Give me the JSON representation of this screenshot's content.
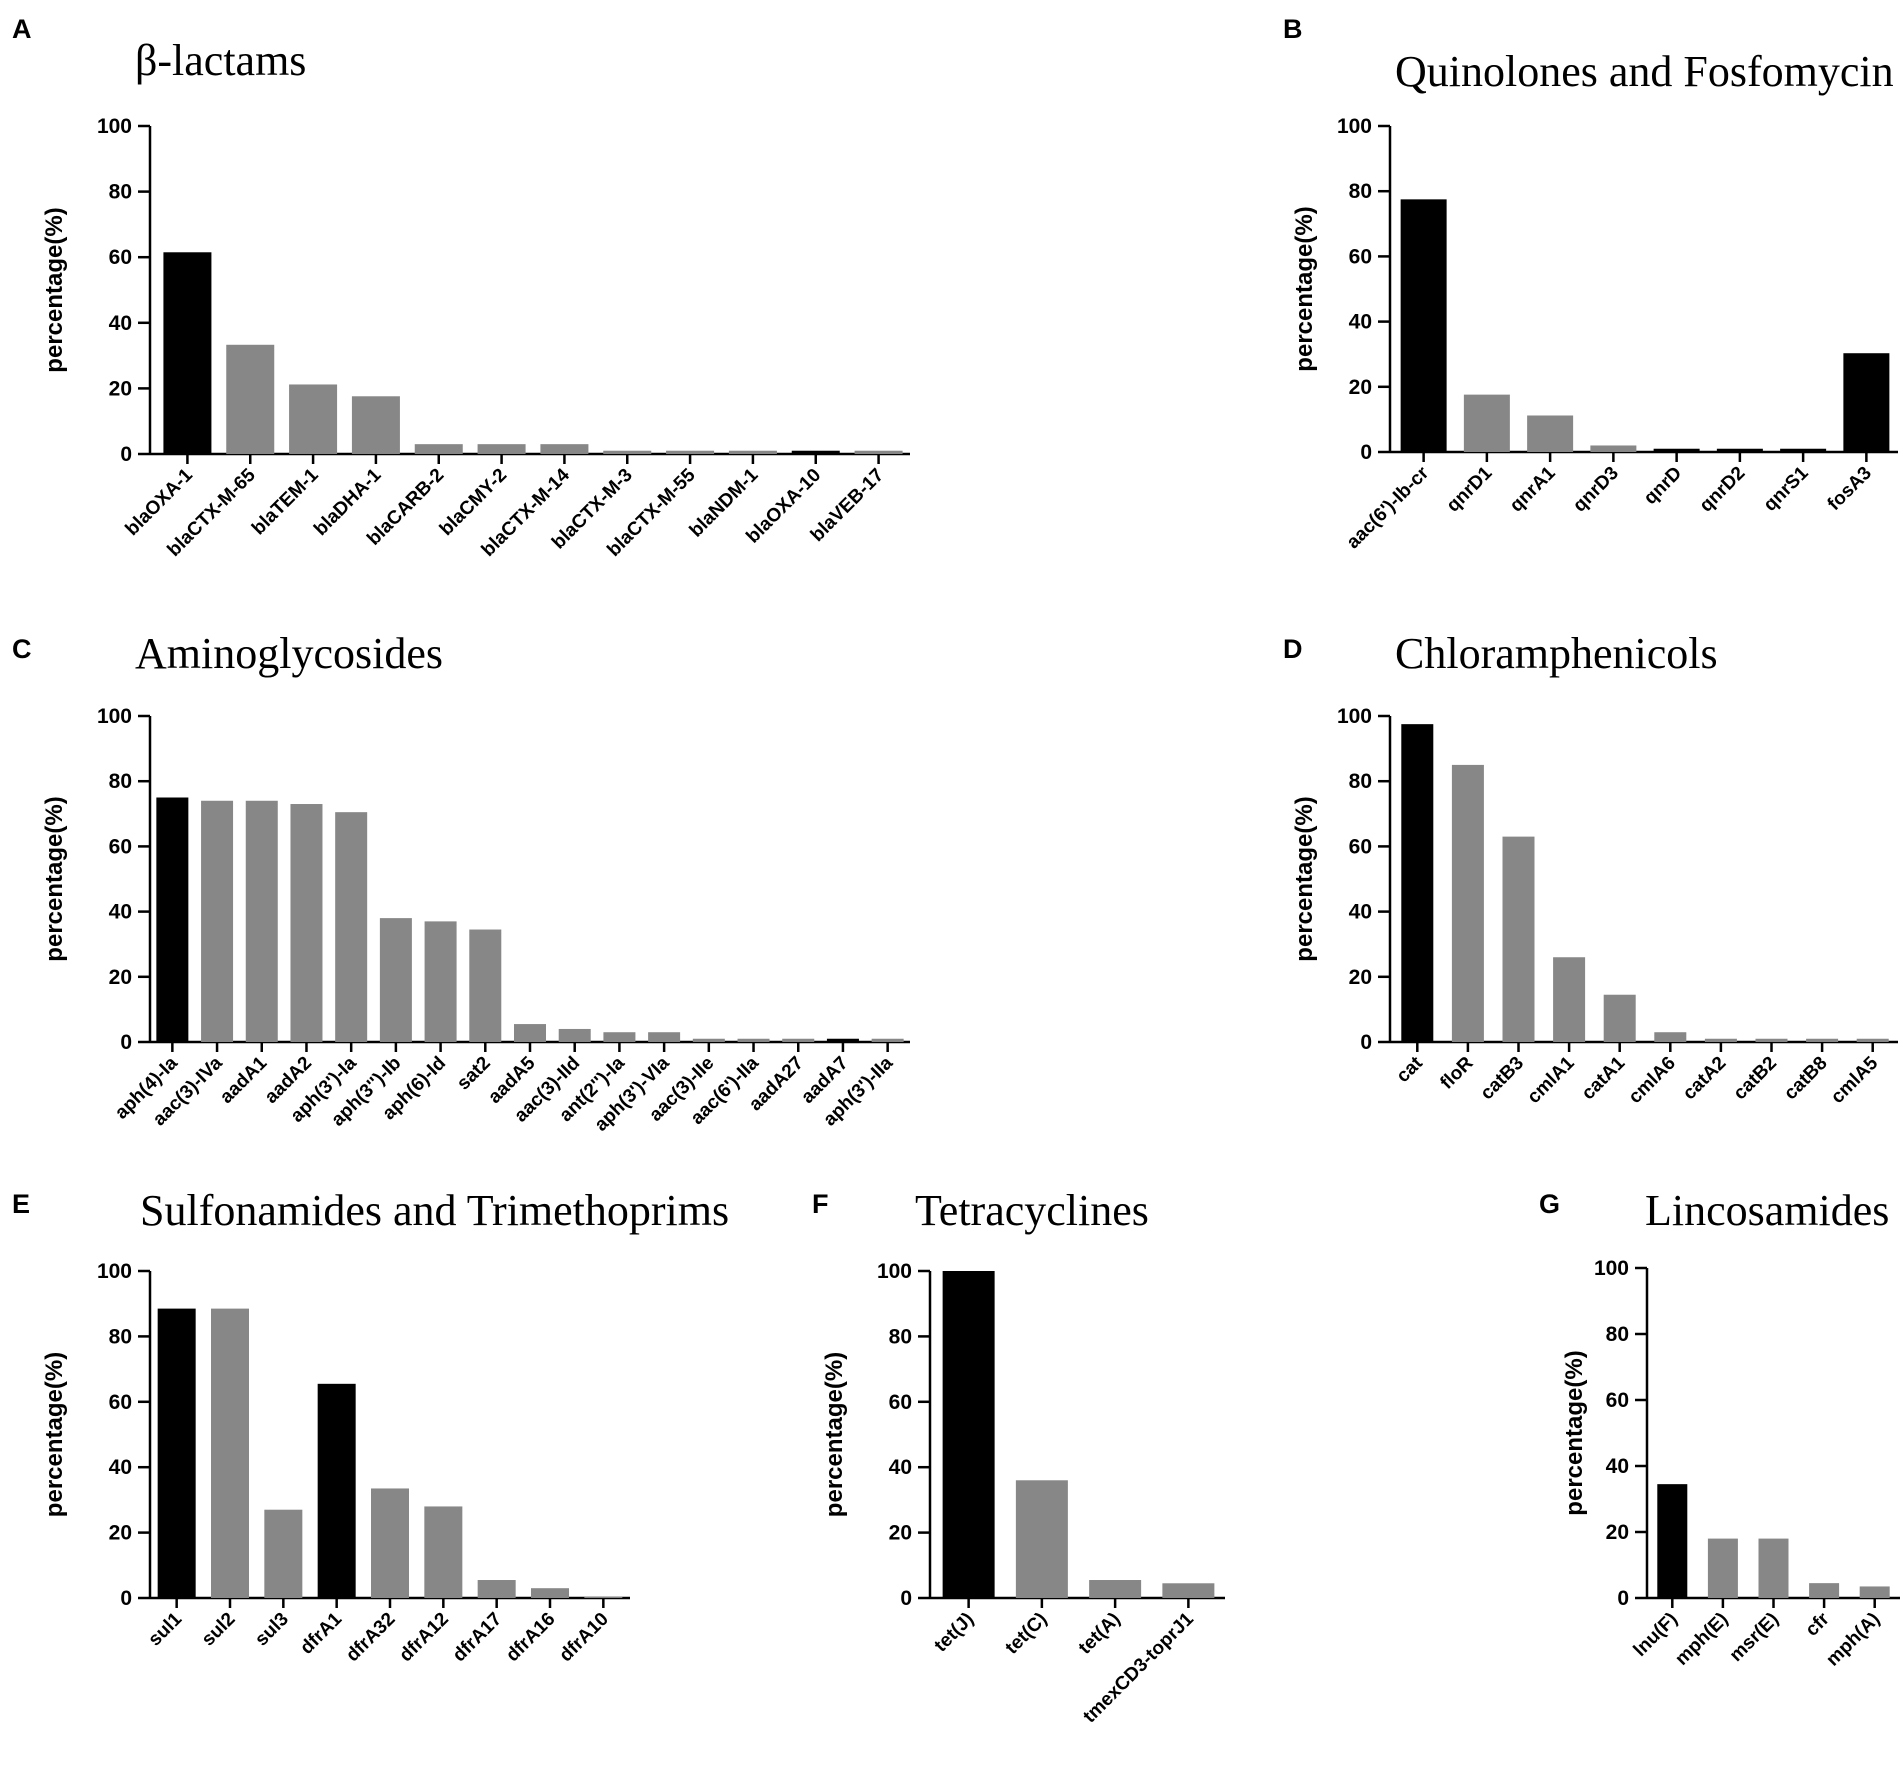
{
  "figure": {
    "description_text": ""
  },
  "colors": {
    "highlight": "#000000",
    "default": "#878787",
    "axis": "#000000"
  },
  "chart_data": [
    {
      "panel": "A",
      "title": "β-lactams",
      "type": "bar",
      "ylabel": "percentage(%)",
      "xlabel": "",
      "ylim": [
        0,
        100
      ],
      "yticks": [
        0,
        20,
        40,
        60,
        80,
        100
      ],
      "categories": [
        "blaOXA-1",
        "blaCTX-M-65",
        "blaTEM-1",
        "blaDHA-1",
        "blaCARB-2",
        "blaCMY-2",
        "blaCTX-M-14",
        "blaCTX-M-3",
        "blaCTX-M-55",
        "blaNDM-1",
        "blaOXA-10",
        "blaVEB-17"
      ],
      "values": [
        61.5,
        33.3,
        21.2,
        17.6,
        3.0,
        3.0,
        3.0,
        1.0,
        1.0,
        1.0,
        1.0,
        1.0
      ],
      "highlight": [
        true,
        false,
        false,
        false,
        false,
        false,
        false,
        false,
        false,
        false,
        true,
        false
      ]
    },
    {
      "panel": "B",
      "title": "Quinolones and Fosfomycin",
      "type": "bar",
      "ylabel": "percentage(%)",
      "xlabel": "",
      "ylim": [
        0,
        100
      ],
      "yticks": [
        0,
        20,
        40,
        60,
        80,
        100
      ],
      "categories": [
        "aac(6')-Ib-cr",
        "qnrD1",
        "qnrA1",
        "qnrD3",
        "qnrD",
        "qnrD2",
        "qnrS1",
        "fosA3"
      ],
      "values": [
        77.5,
        17.6,
        11.2,
        2.0,
        1.0,
        1.0,
        1.0,
        30.3
      ],
      "highlight": [
        true,
        false,
        false,
        false,
        true,
        true,
        true,
        true
      ]
    },
    {
      "panel": "C",
      "title": "Aminoglycosides",
      "type": "bar",
      "ylabel": "percentage(%)",
      "xlabel": "",
      "ylim": [
        0,
        100
      ],
      "yticks": [
        0,
        20,
        40,
        60,
        80,
        100
      ],
      "categories": [
        "aph(4)-Ia",
        "aac(3)-IVa",
        "aadA1",
        "aadA2",
        "aph(3')-Ia",
        "aph(3'')-Ib",
        "aph(6)-Id",
        "sat2",
        "aadA5",
        "aac(3)-IId",
        "ant(2'')-Ia",
        "aph(3')-VIa",
        "aac(3)-IIe",
        "aac(6')-IIa",
        "aadA27",
        "aadA7",
        "aph(3')-IIa"
      ],
      "values": [
        75.0,
        74.0,
        74.0,
        73.0,
        70.5,
        38.0,
        37.0,
        34.5,
        5.5,
        4.0,
        3.0,
        3.0,
        1.0,
        1.0,
        1.0,
        1.0,
        1.0
      ],
      "highlight": [
        true,
        false,
        false,
        false,
        false,
        false,
        false,
        false,
        false,
        false,
        false,
        false,
        false,
        false,
        false,
        true,
        false
      ]
    },
    {
      "panel": "D",
      "title": "Chloramphenicols",
      "type": "bar",
      "ylabel": "percentage(%)",
      "xlabel": "",
      "ylim": [
        0,
        100
      ],
      "yticks": [
        0,
        20,
        40,
        60,
        80,
        100
      ],
      "categories": [
        "cat",
        "floR",
        "catB3",
        "cmlA1",
        "catA1",
        "cmlA6",
        "catA2",
        "catB2",
        "catB8",
        "cmlA5"
      ],
      "values": [
        97.5,
        85.0,
        63.0,
        26.0,
        14.5,
        3.0,
        1.0,
        1.0,
        1.0,
        1.0
      ],
      "highlight": [
        true,
        false,
        false,
        false,
        false,
        false,
        false,
        false,
        false,
        false
      ]
    },
    {
      "panel": "E",
      "title": "Sulfonamides and Trimethoprims",
      "type": "bar",
      "ylabel": "percentage(%)",
      "xlabel": "",
      "ylim": [
        0,
        100
      ],
      "yticks": [
        0,
        20,
        40,
        60,
        80,
        100
      ],
      "categories": [
        "sul1",
        "sul2",
        "sul3",
        "dfrA1",
        "dfrA32",
        "dfrA12",
        "dfrA17",
        "dfrA16",
        "dfrA10"
      ],
      "values": [
        88.5,
        88.5,
        27.0,
        65.5,
        33.5,
        28.0,
        5.5,
        3.0,
        0.3
      ],
      "highlight": [
        true,
        false,
        false,
        true,
        false,
        false,
        false,
        false,
        false
      ]
    },
    {
      "panel": "F",
      "title": "Tetracyclines",
      "type": "bar",
      "ylabel": "percentage(%)",
      "xlabel": "",
      "ylim": [
        0,
        100
      ],
      "yticks": [
        0,
        20,
        40,
        60,
        80,
        100
      ],
      "categories": [
        "tet(J)",
        "tet(C)",
        "tet(A)",
        "tmexCD3-toprJ1"
      ],
      "values": [
        100,
        36.0,
        5.5,
        4.5
      ],
      "highlight": [
        true,
        false,
        false,
        false
      ]
    },
    {
      "panel": "G",
      "title": "Lincosamides",
      "type": "bar",
      "ylabel": "percentage(%)",
      "xlabel": "",
      "ylim": [
        0,
        100
      ],
      "yticks": [
        0,
        20,
        40,
        60,
        80,
        100
      ],
      "categories": [
        "lnu(F)",
        "mph(E)",
        "msr(E)",
        "cfr",
        "mph(A)"
      ],
      "values": [
        34.5,
        18.0,
        18.0,
        4.5,
        3.5
      ],
      "highlight": [
        true,
        false,
        false,
        false,
        false
      ]
    }
  ]
}
